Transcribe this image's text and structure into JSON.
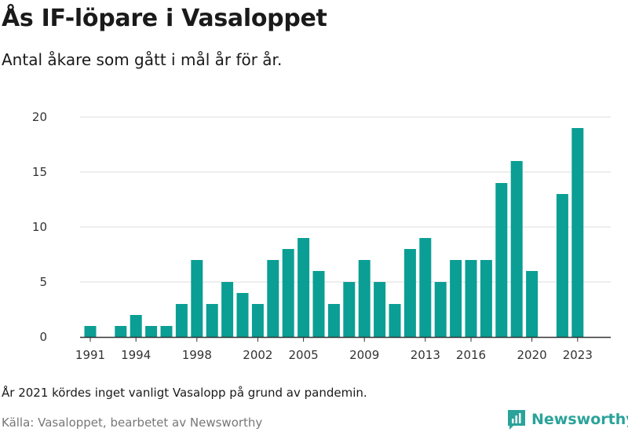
{
  "header": {
    "title": "Ås IF-löpare i Vasaloppet",
    "subtitle": "Antal åkare som gått i mål år för år."
  },
  "footer": {
    "note": "År 2021 kördes inget vanligt Vasalopp på grund av pandemin.",
    "source": "Källa: Vasaloppet, bearbetet av Newsworthy",
    "logo_text": "Newsworthy"
  },
  "colors": {
    "bar": "#0b9e94",
    "grid": "#dddddd",
    "axis": "#333333",
    "logo": "#2aa39a"
  },
  "chart_data": {
    "type": "bar",
    "x": [
      1991,
      1992,
      1993,
      1994,
      1995,
      1996,
      1997,
      1998,
      1999,
      2000,
      2001,
      2002,
      2003,
      2004,
      2005,
      2006,
      2007,
      2008,
      2009,
      2010,
      2011,
      2012,
      2013,
      2014,
      2015,
      2016,
      2017,
      2018,
      2019,
      2020,
      2021,
      2022,
      2023
    ],
    "values": [
      1,
      0,
      1,
      2,
      1,
      1,
      3,
      7,
      3,
      5,
      4,
      3,
      7,
      8,
      9,
      6,
      3,
      5,
      7,
      5,
      3,
      8,
      9,
      5,
      7,
      7,
      7,
      14,
      16,
      6,
      null,
      13,
      19
    ],
    "xticks": [
      1991,
      1994,
      1998,
      2002,
      2005,
      2009,
      2013,
      2016,
      2020,
      2023
    ],
    "yticks": [
      0,
      5,
      10,
      15,
      20
    ],
    "ylim": [
      0,
      20
    ],
    "xlim": [
      1990,
      2024
    ],
    "grid": true,
    "legend": "none"
  }
}
